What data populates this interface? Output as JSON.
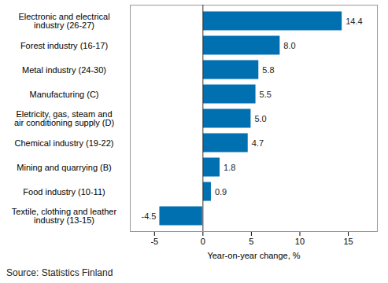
{
  "chart_data": {
    "type": "bar",
    "orientation": "horizontal",
    "categories": [
      "Electronic and electrical industry (26-27)",
      "Forest industry (16-17)",
      "Metal industry (24-30)",
      "Manufacturing (C)",
      "Eletricity, gas, steam and air conditioning supply (D)",
      "Chemical industry (19-22)",
      "Mining and quarrying (B)",
      "Food industry (10-11)",
      "Textile, clothing and leather industry (13-15)"
    ],
    "values": [
      14.4,
      8.0,
      5.8,
      5.5,
      5.0,
      4.7,
      1.8,
      0.9,
      -4.5
    ],
    "value_labels": [
      "14.4",
      "8.0",
      "5.8",
      "5.5",
      "5.0",
      "4.7",
      "1.8",
      "0.9",
      "-4.5"
    ],
    "color": "#0070b0",
    "xlabel": "Year-on-year change, %",
    "xlim": [
      -7.5,
      18
    ],
    "xticks": [
      -5,
      0,
      5,
      10,
      15
    ],
    "grid": false,
    "data_labels": true,
    "caption": "Source: Statistics Finland"
  }
}
